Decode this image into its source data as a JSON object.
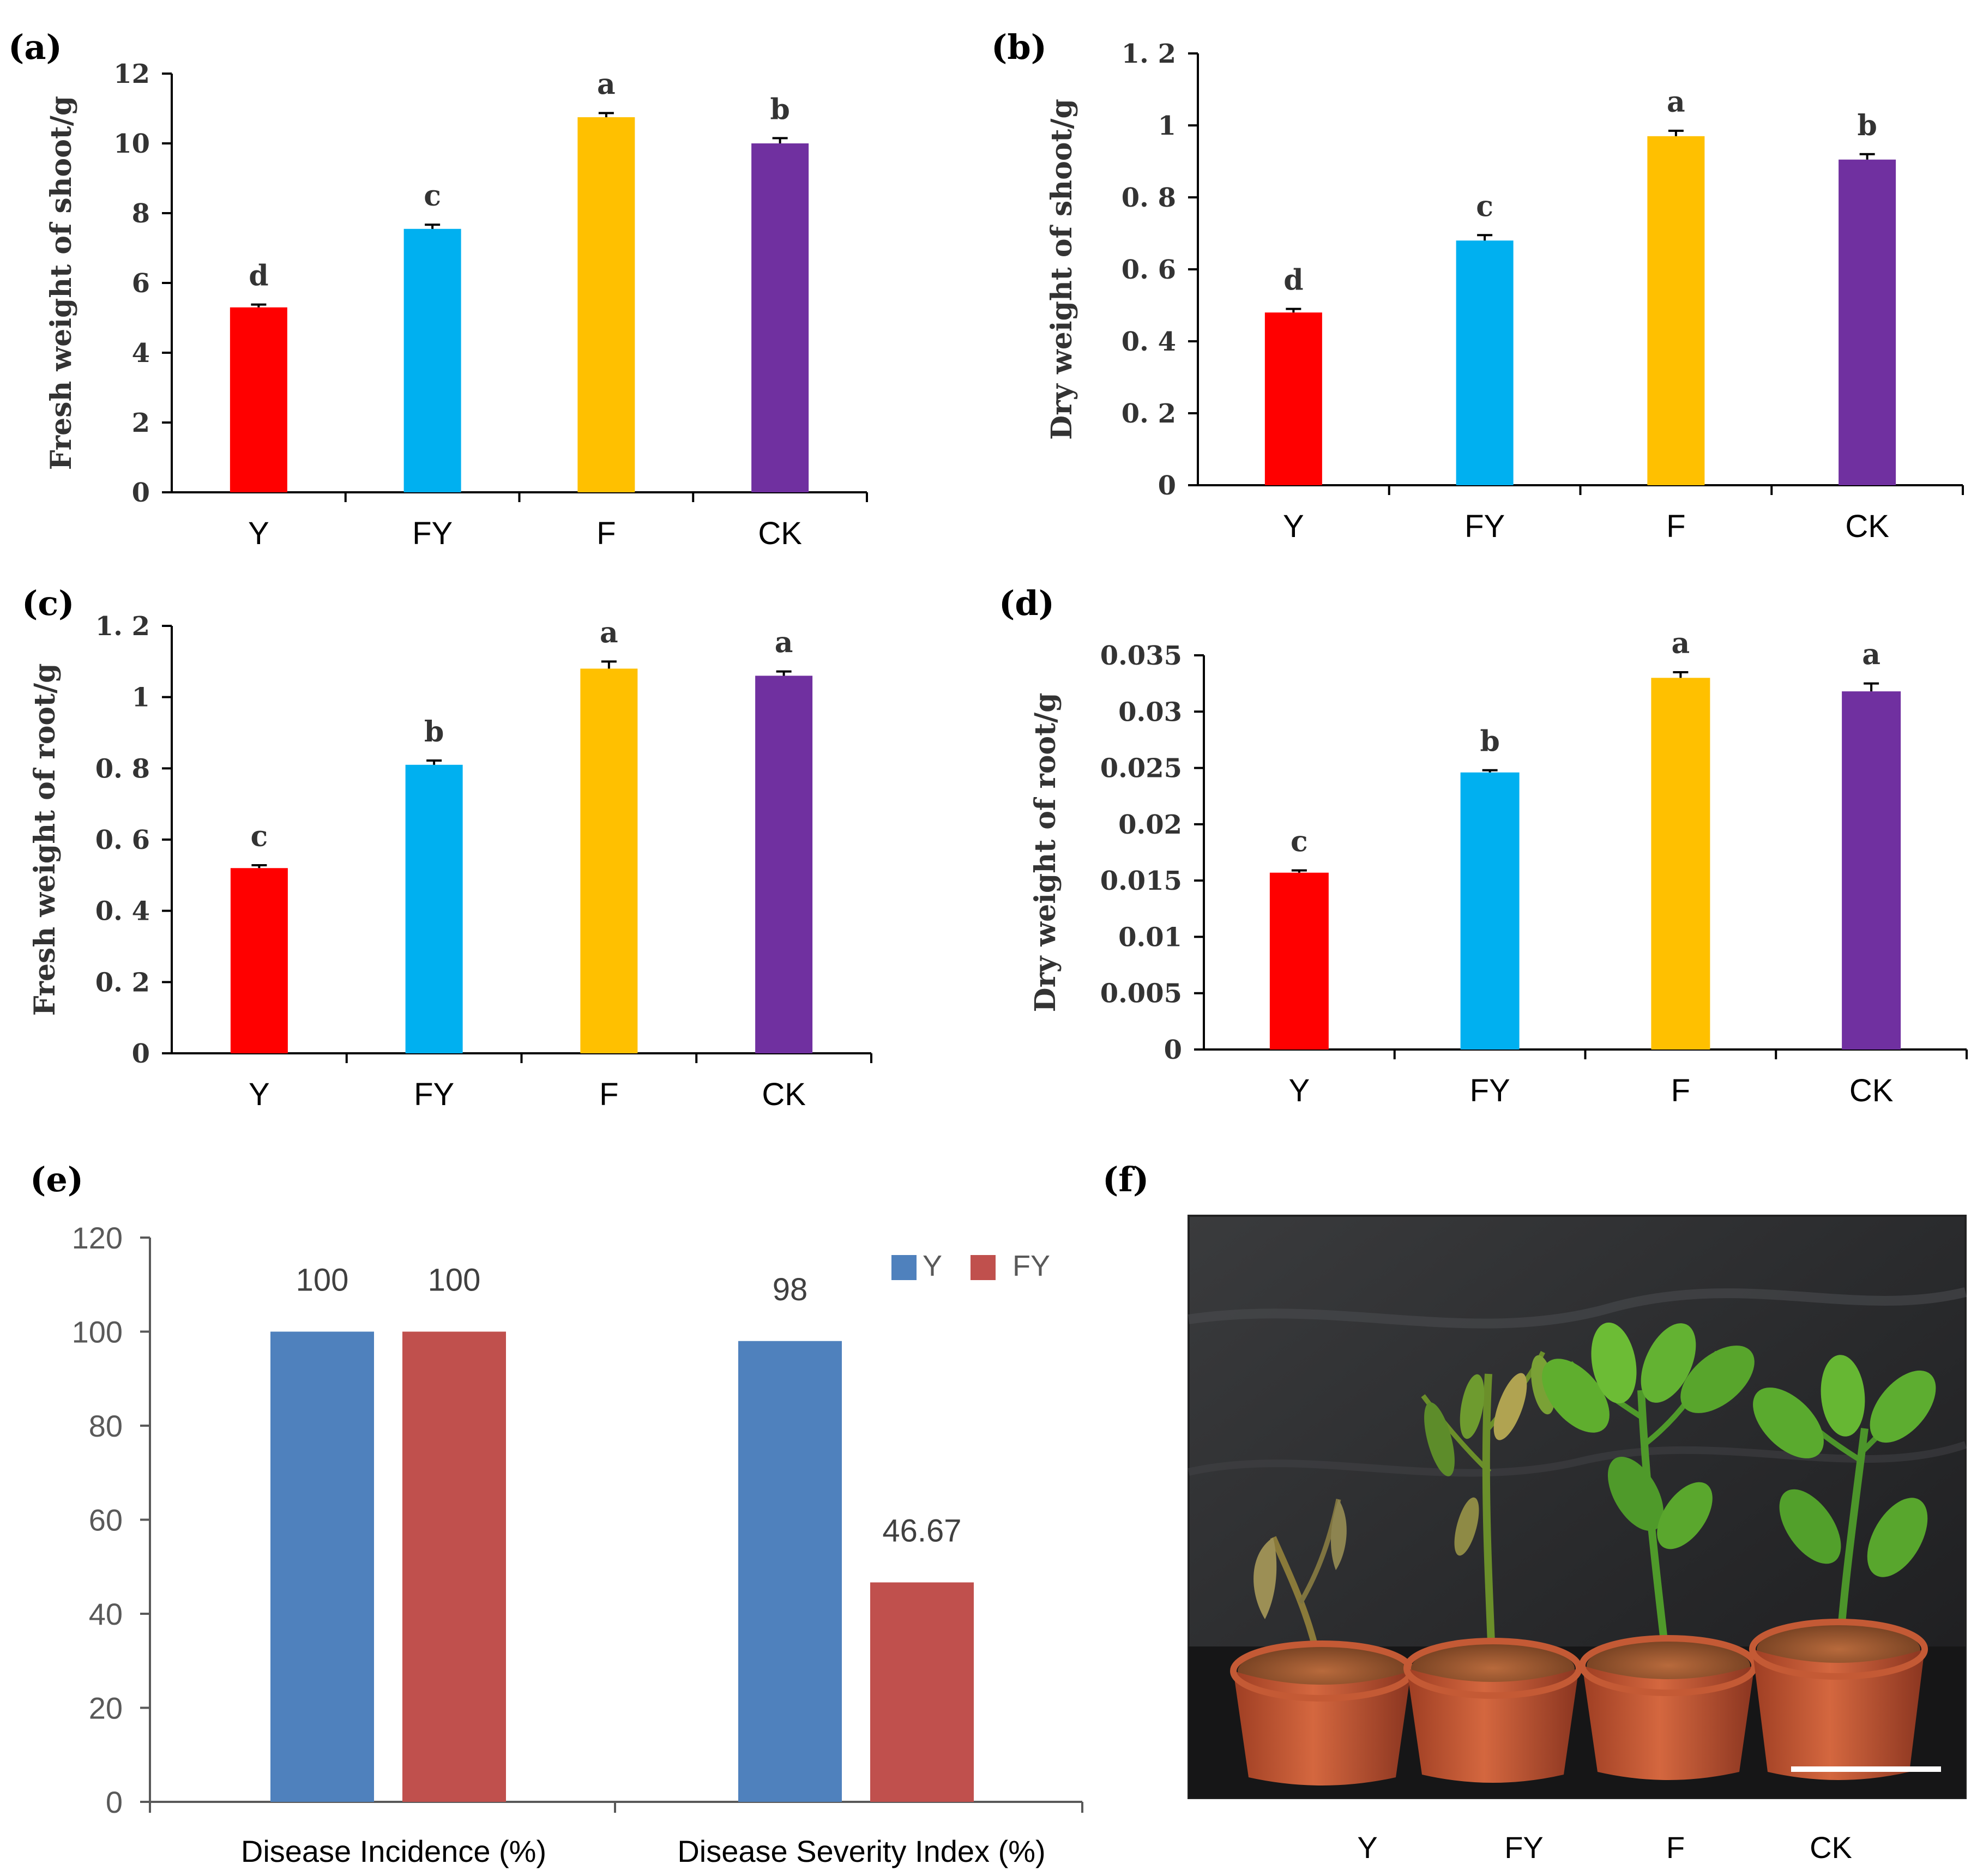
{
  "panel_labels": {
    "a": "(a)",
    "b": "(b)",
    "c": "(c)",
    "d": "(d)",
    "e": "(e)",
    "f": "(f)"
  },
  "colors": {
    "Y": "#ff0000",
    "FY": "#00b0f0",
    "F": "#ffc000",
    "CK": "#7030a0",
    "e_Y": "#4f81bd",
    "e_FY": "#c0504d",
    "axis": "#000000",
    "e_axis": "#595959"
  },
  "chart_data": [
    {
      "id": "a",
      "type": "bar",
      "title": "",
      "xlabel": "",
      "ylabel": "Fresh weight of shoot/g",
      "categories": [
        "Y",
        "FY",
        "F",
        "CK"
      ],
      "values": [
        5.3,
        7.55,
        10.75,
        10.0
      ],
      "errors": [
        0.08,
        0.12,
        0.12,
        0.15
      ],
      "letters": [
        "d",
        "c",
        "a",
        "b"
      ],
      "ylim": [
        0,
        12
      ],
      "yticks": [
        "0",
        "2",
        "4",
        "6",
        "8",
        "10",
        "12"
      ]
    },
    {
      "id": "b",
      "type": "bar",
      "title": "",
      "xlabel": "",
      "ylabel": "Dry weight of shoot/g",
      "categories": [
        "Y",
        "FY",
        "F",
        "CK"
      ],
      "values": [
        0.48,
        0.68,
        0.97,
        0.905
      ],
      "errors": [
        0.01,
        0.015,
        0.015,
        0.015
      ],
      "letters": [
        "d",
        "c",
        "a",
        "b"
      ],
      "ylim": [
        0,
        1.2
      ],
      "yticks": [
        "0",
        "0. 2",
        "0. 4",
        "0. 6",
        "0. 8",
        "1",
        "1. 2"
      ]
    },
    {
      "id": "c",
      "type": "bar",
      "title": "",
      "xlabel": "",
      "ylabel": "Fresh weight of root/g",
      "categories": [
        "Y",
        "FY",
        "F",
        "CK"
      ],
      "values": [
        0.52,
        0.81,
        1.08,
        1.06
      ],
      "errors": [
        0.008,
        0.012,
        0.02,
        0.012
      ],
      "letters": [
        "c",
        "b",
        "a",
        "a"
      ],
      "ylim": [
        0,
        1.2
      ],
      "yticks": [
        "0",
        "0. 2",
        "0. 4",
        "0. 6",
        "0. 8",
        "1",
        "1. 2"
      ]
    },
    {
      "id": "d",
      "type": "bar",
      "title": "",
      "xlabel": "",
      "ylabel": "Dry weight of root/g",
      "categories": [
        "Y",
        "FY",
        "F",
        "CK"
      ],
      "values": [
        0.0157,
        0.0246,
        0.033,
        0.0318
      ],
      "errors": [
        0.0002,
        0.0002,
        0.0005,
        0.0007
      ],
      "letters": [
        "c",
        "b",
        "a",
        "a"
      ],
      "ylim": [
        0,
        0.035
      ],
      "yticks": [
        "0",
        "0.005",
        "0.01",
        "0.015",
        "0.02",
        "0.025",
        "0.03",
        "0.035"
      ]
    },
    {
      "id": "e",
      "type": "bar",
      "title": "",
      "xlabel": "",
      "ylabel": "",
      "categories": [
        "Disease Incidence (%)",
        "Disease Severity Index (%)"
      ],
      "series": [
        {
          "name": "Y",
          "values": [
            100,
            98
          ],
          "labels": [
            "100",
            "98"
          ]
        },
        {
          "name": "FY",
          "values": [
            100,
            46.67
          ],
          "labels": [
            "100",
            "46.67"
          ]
        }
      ],
      "ylim": [
        0,
        120
      ],
      "yticks": [
        "0",
        "20",
        "40",
        "60",
        "80",
        "100",
        "120"
      ],
      "legend": "top-right"
    }
  ],
  "photo": {
    "caption_labels": [
      "Y",
      "FY",
      "F",
      "CK"
    ]
  }
}
